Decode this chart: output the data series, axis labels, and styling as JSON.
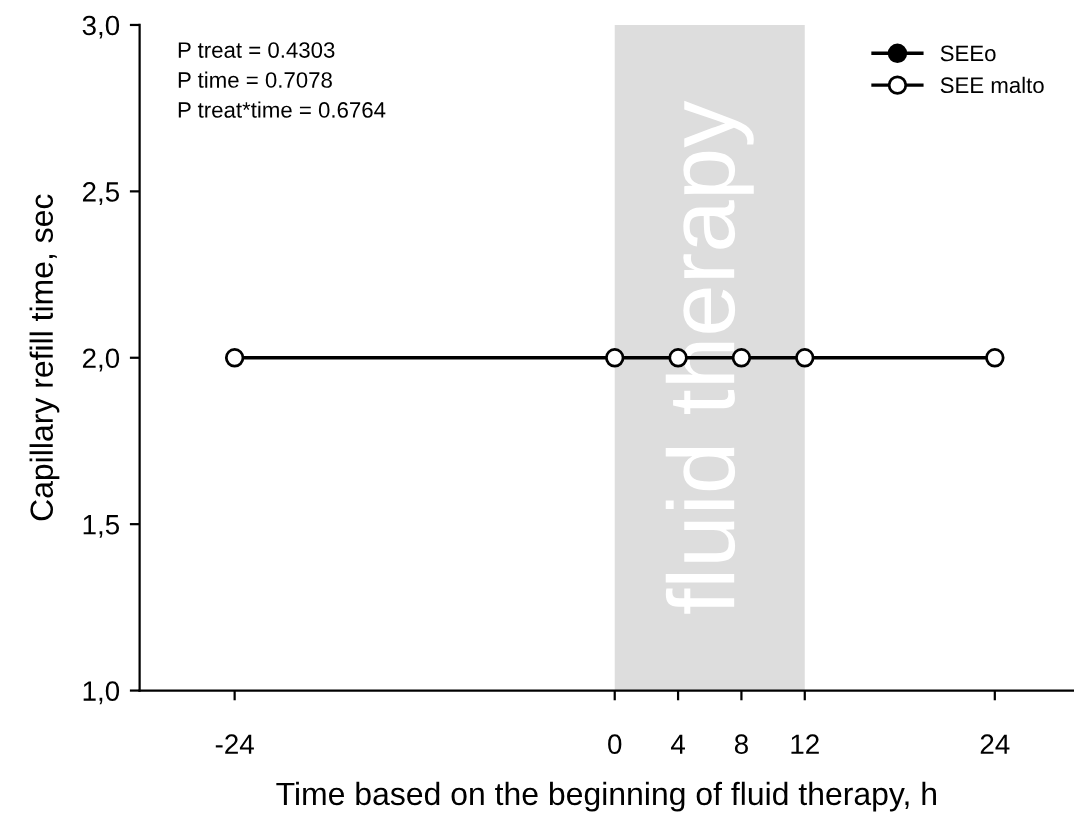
{
  "chart_data": {
    "type": "line",
    "xlabel": "Time based on the beginning of fluid therapy, h",
    "ylabel": "Capillary refill time, sec",
    "x": [
      -24,
      0,
      4,
      8,
      12,
      24
    ],
    "series": [
      {
        "name": "SEEo",
        "color": "#000000",
        "values": [
          null,
          null,
          null,
          null,
          null,
          null
        ]
      },
      {
        "name": "SEE malto",
        "color": "#000000",
        "values": [
          2.0,
          2.0,
          2.0,
          2.0,
          2.0,
          2.0
        ]
      }
    ],
    "xlim": [
      -30,
      29
    ],
    "ylim": [
      1.0,
      3.0
    ],
    "xticks": [
      -24,
      0,
      4,
      8,
      12,
      24
    ],
    "yticks": [
      {
        "value": 1.0,
        "label": "1,0"
      },
      {
        "value": 1.5,
        "label": "1,5"
      },
      {
        "value": 2.0,
        "label": "2,0"
      },
      {
        "value": 2.5,
        "label": "2,5"
      },
      {
        "value": 3.0,
        "label": "3,0"
      }
    ],
    "bands": [
      {
        "axis": "x",
        "from": 0,
        "to": 12,
        "label": "fluid therapy",
        "color": "#dddddd"
      }
    ],
    "annotations": [
      "P treat = 0.4303",
      "P time = 0.7078",
      "P treat*time = 0.6764"
    ],
    "marker": "circle",
    "line_style": "solid",
    "grid": false,
    "legend": "top right"
  }
}
